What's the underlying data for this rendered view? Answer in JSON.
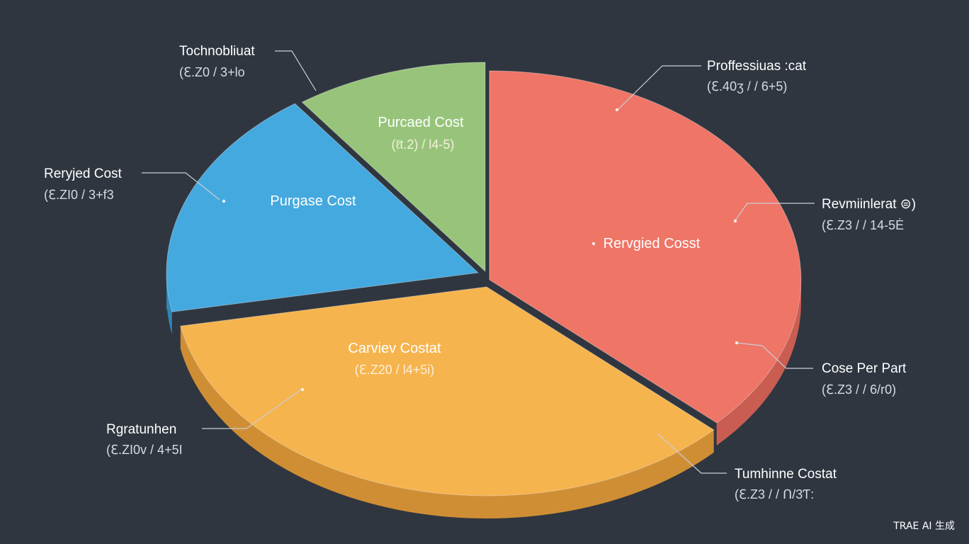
{
  "chart_data": {
    "type": "pie",
    "style": "3d-exploded",
    "slices": [
      {
        "label": "Rervgied Cosst",
        "value": 37,
        "color": "#ef7566",
        "side_color": "#c95d51"
      },
      {
        "label": "Carviev Costat",
        "value": 35,
        "color": "#f6b44e",
        "side_color": "#d08e34",
        "value_text": "(ℇ.Z20 / l4+5i)"
      },
      {
        "label": "Purgase Cost",
        "value": 18,
        "color": "#44a9de",
        "side_color": "#2f86b4"
      },
      {
        "label": "Purcaed Cost",
        "value": 10,
        "color": "#97c47a",
        "side_color": "#78a25d",
        "value_text": "(ℓt.2) / l4-5)"
      }
    ],
    "callouts": [
      {
        "name": "Tochnobliuat",
        "value": "(ℇ.Z0 / 3+lo",
        "side": "left"
      },
      {
        "name": "Reryjed Cost",
        "value": "(ℇ.ZI0 / 3+f3",
        "side": "left"
      },
      {
        "name": "Rgratunhen",
        "value": "(ℇ.ZI0v / 4+5I",
        "side": "left"
      },
      {
        "name": "Proffessiuas :cat",
        "value": "(ℇ.40ʒ / / 6+5)",
        "side": "right"
      },
      {
        "name": "Revmiinlerat ⊜)",
        "value": "(ℇ.Z3 / / 14-5Ė",
        "side": "right"
      },
      {
        "name": "Cose Per Part",
        "value": "(ℇ.Z3 / / 6/r0)",
        "side": "right"
      },
      {
        "name": "Tumhinne Costat",
        "value": "(ℇ.Z3 / / Ո/3Ƭ:",
        "side": "right"
      }
    ]
  },
  "watermark": "TRAE AI 生成"
}
